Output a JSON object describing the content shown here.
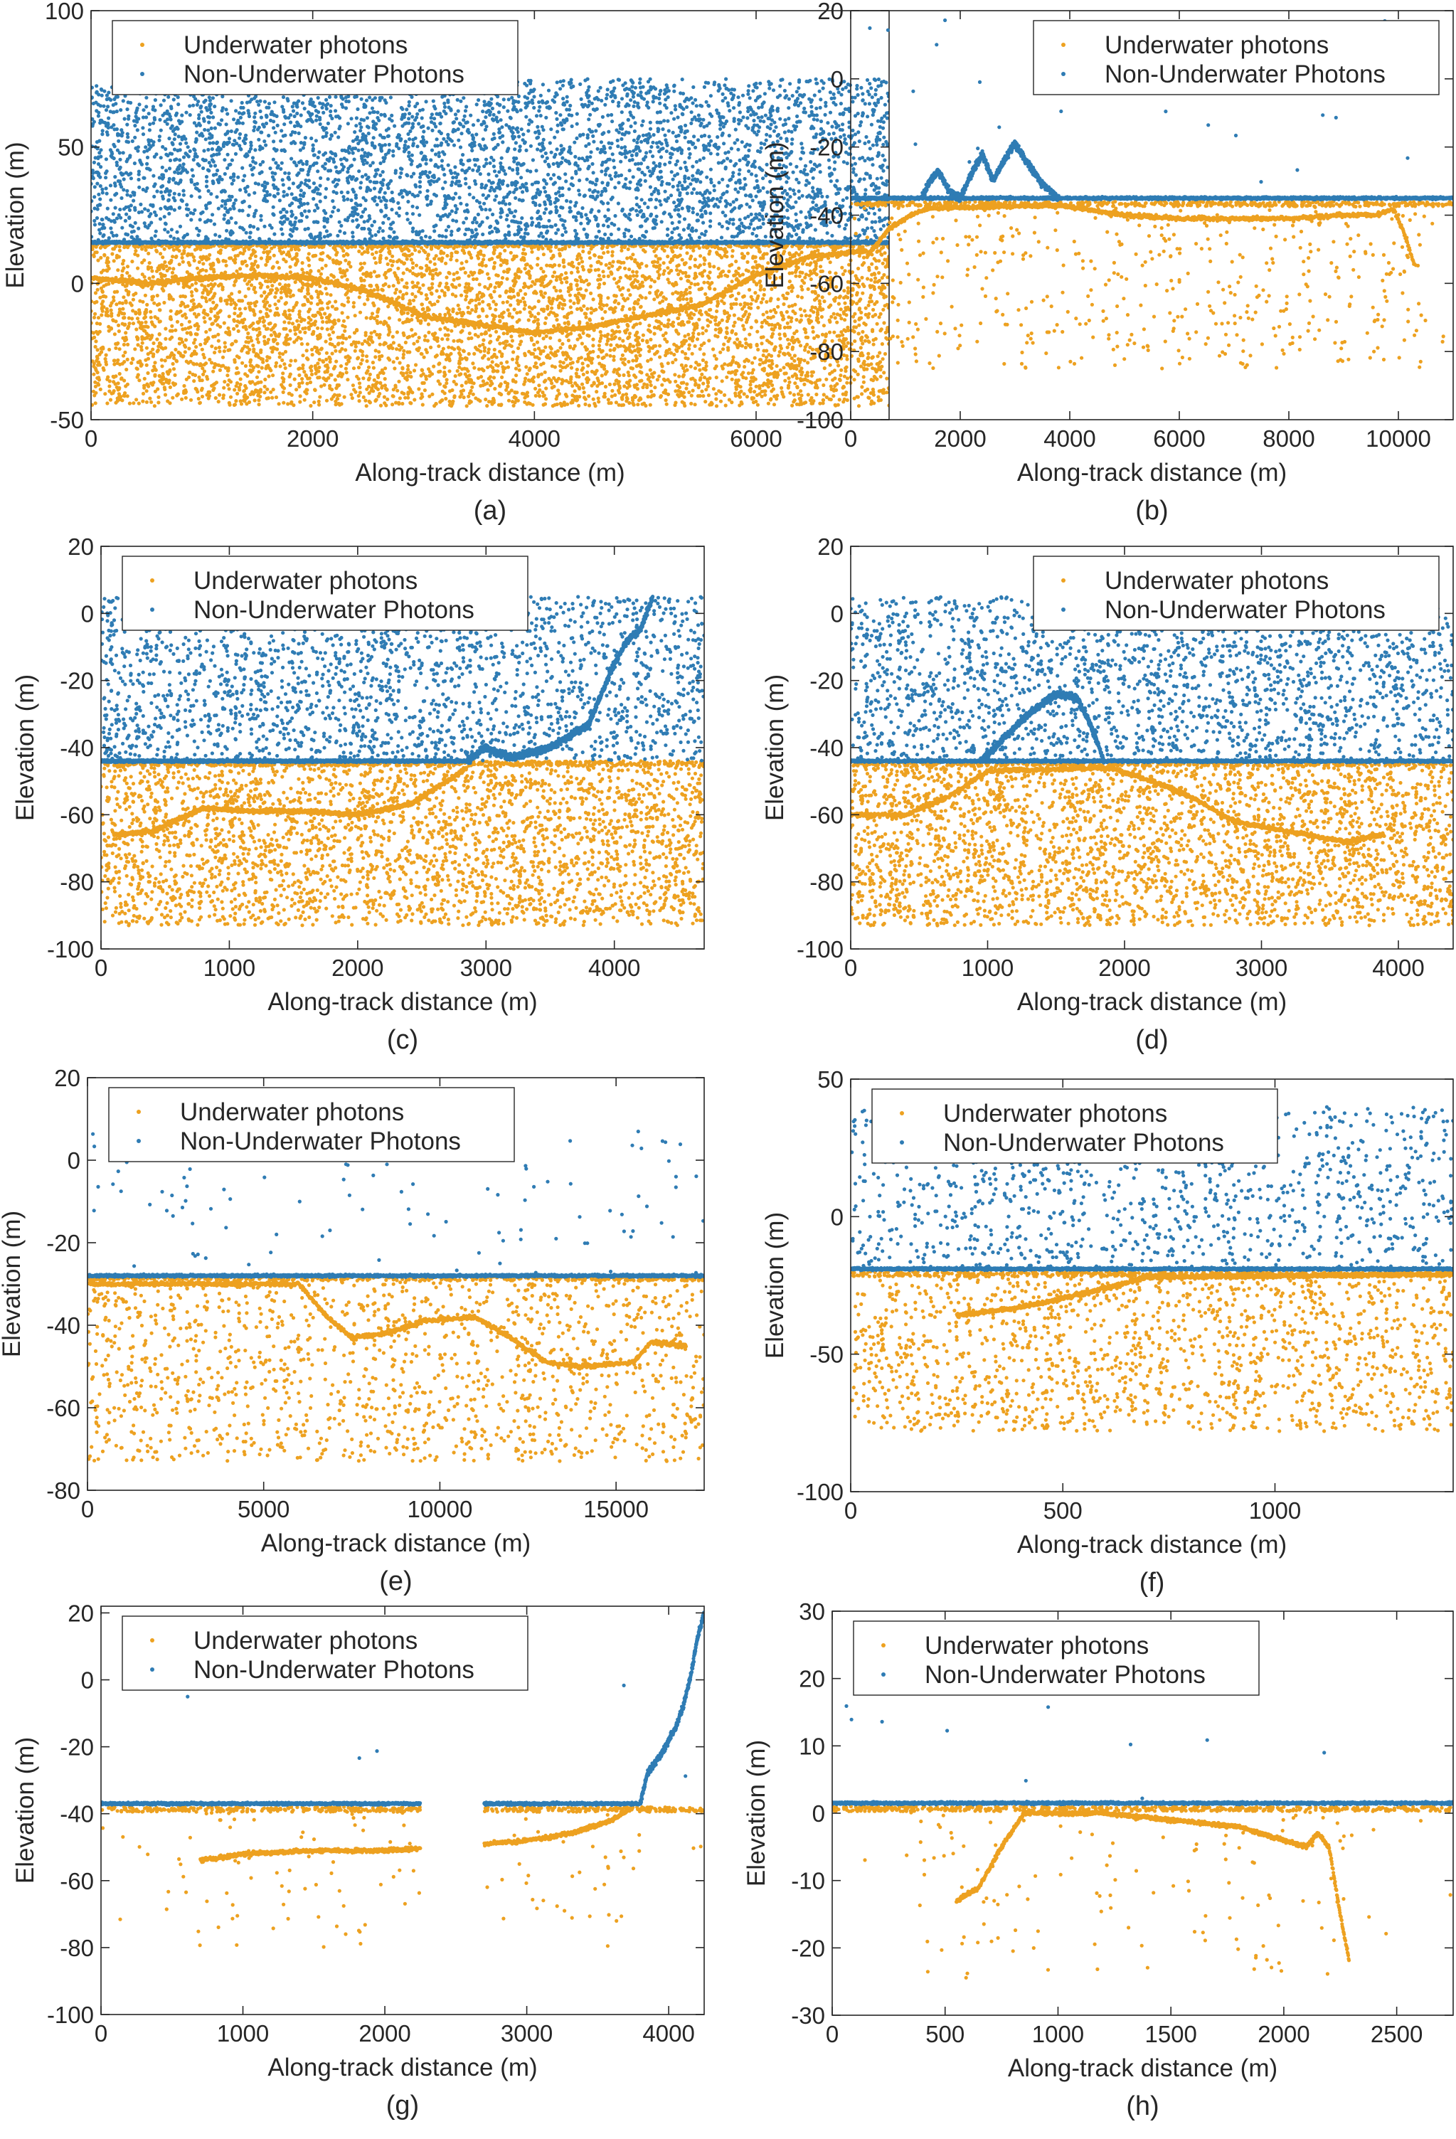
{
  "figure": {
    "xlabel": "Along-track distance (m)",
    "ylabel": "Elevation (m)",
    "legend": {
      "underwater": "Underwater photons",
      "nonunderwater": "Non-Underwater Photons"
    }
  },
  "colors": {
    "underwater": "#EDA120",
    "nonunderwater": "#2F7CB4",
    "axis": "#262626",
    "legend_border": "#262626"
  },
  "chart_data": [
    {
      "id": "a",
      "caption": "(a)",
      "type": "scatter",
      "xlabel": "Along-track distance (m)",
      "ylabel": "Elevation (m)",
      "xlim": [
        0,
        7200
      ],
      "ylim": [
        -50,
        100
      ],
      "xticks": [
        0,
        2000,
        4000,
        6000
      ],
      "yticks": [
        -50,
        0,
        50,
        100
      ],
      "legend_position": "top-left",
      "series": [
        {
          "name": "Underwater photons",
          "role": "underwater",
          "bottom": [
            [
              0,
              2
            ],
            [
              500,
              0
            ],
            [
              1000,
              2
            ],
            [
              1500,
              3
            ],
            [
              2000,
              2
            ],
            [
              2500,
              -3
            ],
            [
              3000,
              -12
            ],
            [
              3500,
              -15
            ],
            [
              4000,
              -18
            ],
            [
              4500,
              -16
            ],
            [
              5000,
              -12
            ],
            [
              5500,
              -8
            ],
            [
              6000,
              3
            ],
            [
              6500,
              10
            ],
            [
              7000,
              12
            ]
          ],
          "noise_range": [
            -45,
            15
          ],
          "noise_count": 5200,
          "line_y": 15
        },
        {
          "name": "Non-Underwater Photons",
          "role": "nonunderwater",
          "surface_y": 15,
          "noise_range": [
            15,
            75
          ],
          "noise_count": 4200
        }
      ]
    },
    {
      "id": "b",
      "caption": "(b)",
      "type": "scatter",
      "xlabel": "Along-track distance (m)",
      "ylabel": "Elevation (m)",
      "xlim": [
        0,
        11000
      ],
      "ylim": [
        -100,
        20
      ],
      "xticks": [
        0,
        2000,
        4000,
        6000,
        8000,
        10000
      ],
      "yticks": [
        -100,
        -80,
        -60,
        -40,
        -20,
        0,
        20
      ],
      "legend_position": "top-right",
      "series": [
        {
          "name": "Underwater photons",
          "role": "underwater",
          "bottom": [
            [
              300,
              -52
            ],
            [
              700,
              -44
            ],
            [
              1100,
              -40
            ],
            [
              1400,
              -38
            ],
            [
              3800,
              -37
            ],
            [
              5000,
              -40
            ],
            [
              6000,
              -41
            ],
            [
              7000,
              -41
            ],
            [
              8000,
              -41
            ],
            [
              9000,
              -40
            ],
            [
              9600,
              -40
            ],
            [
              9900,
              -38
            ],
            [
              10100,
              -45
            ],
            [
              10300,
              -55
            ]
          ],
          "noise_range": [
            -85,
            -36
          ],
          "noise_count": 550,
          "line_y": -36
        },
        {
          "name": "Non-Underwater Photons",
          "role": "nonunderwater",
          "surface_y": -35,
          "land": [
            [
              1300,
              -35
            ],
            [
              1450,
              -30
            ],
            [
              1600,
              -27
            ],
            [
              1800,
              -33
            ],
            [
              2000,
              -35
            ],
            [
              2200,
              -28
            ],
            [
              2400,
              -22
            ],
            [
              2600,
              -30
            ],
            [
              2800,
              -24
            ],
            [
              3000,
              -19
            ],
            [
              3200,
              -24
            ],
            [
              3500,
              -31
            ],
            [
              3800,
              -35
            ]
          ],
          "noise_range": [
            -35,
            18
          ],
          "noise_count": 30
        }
      ]
    },
    {
      "id": "c",
      "caption": "(c)",
      "type": "scatter",
      "xlabel": "Along-track distance (m)",
      "ylabel": "Elevation (m)",
      "xlim": [
        0,
        4700
      ],
      "ylim": [
        -100,
        20
      ],
      "xticks": [
        0,
        1000,
        2000,
        3000,
        4000
      ],
      "yticks": [
        -100,
        -80,
        -60,
        -40,
        -20,
        0,
        20
      ],
      "legend_position": "top-left",
      "series": [
        {
          "name": "Underwater photons",
          "role": "underwater",
          "bottom": [
            [
              100,
              -66
            ],
            [
              400,
              -65
            ],
            [
              800,
              -58
            ],
            [
              1200,
              -59
            ],
            [
              1600,
              -59
            ],
            [
              2000,
              -60
            ],
            [
              2400,
              -57
            ],
            [
              2700,
              -50
            ],
            [
              2850,
              -46
            ]
          ],
          "noise_range": [
            -93,
            -44
          ],
          "noise_count": 2900,
          "line_y": -44
        },
        {
          "name": "Non-Underwater Photons",
          "role": "nonunderwater",
          "surface_y": -44,
          "surface_xmax": 2850,
          "land": [
            [
              2850,
              -44
            ],
            [
              3000,
              -40
            ],
            [
              3200,
              -43
            ],
            [
              3500,
              -40
            ],
            [
              3800,
              -33
            ],
            [
              4000,
              -15
            ],
            [
              4100,
              -8
            ],
            [
              4200,
              -5
            ],
            [
              4300,
              5
            ]
          ],
          "noise_range": [
            -44,
            5
          ],
          "noise_count": 2100
        }
      ]
    },
    {
      "id": "d",
      "caption": "(d)",
      "type": "scatter",
      "xlabel": "Along-track distance (m)",
      "ylabel": "Elevation (m)",
      "xlim": [
        0,
        4400
      ],
      "ylim": [
        -100,
        20
      ],
      "xticks": [
        0,
        1000,
        2000,
        3000,
        4000
      ],
      "yticks": [
        -100,
        -80,
        -60,
        -40,
        -20,
        0,
        20
      ],
      "legend_position": "top-right",
      "series": [
        {
          "name": "Underwater photons",
          "role": "underwater",
          "bottom": [
            [
              0,
              -60
            ],
            [
              400,
              -60
            ],
            [
              700,
              -55
            ],
            [
              1000,
              -47
            ],
            [
              1900,
              -46
            ],
            [
              2200,
              -50
            ],
            [
              2500,
              -55
            ],
            [
              2800,
              -62
            ],
            [
              3200,
              -65
            ],
            [
              3600,
              -68
            ],
            [
              3900,
              -66
            ]
          ],
          "noise_range": [
            -93,
            -44
          ],
          "noise_count": 2900,
          "line_y": -44
        },
        {
          "name": "Non-Underwater Photons",
          "role": "nonunderwater",
          "surface_y": -44,
          "land": [
            [
              950,
              -44
            ],
            [
              1100,
              -38
            ],
            [
              1300,
              -30
            ],
            [
              1500,
              -24
            ],
            [
              1650,
              -25
            ],
            [
              1750,
              -33
            ],
            [
              1850,
              -44
            ]
          ],
          "noise_range": [
            -44,
            5
          ],
          "noise_count": 2100
        }
      ]
    },
    {
      "id": "e",
      "caption": "(e)",
      "type": "scatter",
      "xlabel": "Along-track distance (m)",
      "ylabel": "Elevation (m)",
      "xlim": [
        0,
        17500
      ],
      "ylim": [
        -80,
        20
      ],
      "xticks": [
        0,
        5000,
        10000,
        15000
      ],
      "yticks": [
        -80,
        -60,
        -40,
        -20,
        0,
        20
      ],
      "legend_position": "top-left",
      "series": [
        {
          "name": "Underwater photons",
          "role": "underwater",
          "bottom": [
            [
              0,
              -30
            ],
            [
              6000,
              -30
            ],
            [
              6800,
              -38
            ],
            [
              7500,
              -43
            ],
            [
              8500,
              -42
            ],
            [
              9500,
              -39
            ],
            [
              11000,
              -38
            ],
            [
              12000,
              -43
            ],
            [
              13000,
              -49
            ],
            [
              14000,
              -50
            ],
            [
              15500,
              -49
            ],
            [
              16000,
              -44
            ],
            [
              17000,
              -45
            ]
          ],
          "noise_range": [
            -73,
            -28
          ],
          "noise_count": 1400,
          "line_y": -28
        },
        {
          "name": "Non-Underwater Photons",
          "role": "nonunderwater",
          "surface_y": -28,
          "noise_range": [
            -28,
            12
          ],
          "noise_count": 120
        }
      ]
    },
    {
      "id": "f",
      "caption": "(f)",
      "type": "scatter",
      "xlabel": "Along-track distance (m)",
      "ylabel": "Elevation (m)",
      "xlim": [
        0,
        1420
      ],
      "ylim": [
        -100,
        50
      ],
      "xticks": [
        0,
        500,
        1000
      ],
      "yticks": [
        -100,
        -50,
        0,
        50
      ],
      "legend_position": "top-left",
      "series": [
        {
          "name": "Underwater photons",
          "role": "underwater",
          "bottom": [
            [
              250,
              -36
            ],
            [
              400,
              -33
            ],
            [
              550,
              -28
            ],
            [
              700,
              -22
            ],
            [
              1420,
              -21
            ]
          ],
          "noise_range": [
            -78,
            -20
          ],
          "noise_count": 1500,
          "line_y": -20
        },
        {
          "name": "Non-Underwater Photons",
          "role": "nonunderwater",
          "surface_y": -19,
          "noise_range": [
            -19,
            40
          ],
          "noise_count": 1100
        }
      ]
    },
    {
      "id": "g",
      "caption": "(g)",
      "type": "scatter",
      "xlabel": "Along-track distance (m)",
      "ylabel": "Elevation (m)",
      "xlim": [
        0,
        4250
      ],
      "ylim": [
        -100,
        22
      ],
      "xticks": [
        0,
        1000,
        2000,
        3000,
        4000
      ],
      "yticks": [
        -100,
        -80,
        -60,
        -40,
        -20,
        0,
        20
      ],
      "legend_position": "top-left",
      "series": [
        {
          "name": "Underwater photons",
          "role": "underwater",
          "bottom": [
            [
              700,
              -54
            ],
            [
              1000,
              -52
            ],
            [
              1500,
              -51
            ],
            [
              2000,
              -51
            ],
            [
              2700,
              -49
            ],
            [
              3000,
              -48
            ],
            [
              3300,
              -46
            ],
            [
              3600,
              -42
            ],
            [
              3750,
              -38
            ]
          ],
          "gap": [
            2250,
            2700
          ],
          "noise_range": [
            -80,
            -38
          ],
          "noise_count": 160,
          "line_y": -38
        },
        {
          "name": "Non-Underwater Photons",
          "role": "nonunderwater",
          "surface_y": -37,
          "surface_gap": [
            2250,
            2700
          ],
          "surface_xmax": 3800,
          "land": [
            [
              3800,
              -37
            ],
            [
              3850,
              -28
            ],
            [
              3950,
              -22
            ],
            [
              4050,
              -14
            ],
            [
              4100,
              -8
            ],
            [
              4150,
              0
            ],
            [
              4200,
              12
            ],
            [
              4250,
              20
            ]
          ],
          "noise_range": [
            -37,
            5
          ],
          "noise_count": 6
        }
      ]
    },
    {
      "id": "h",
      "caption": "(h)",
      "type": "scatter",
      "xlabel": "Along-track distance (m)",
      "ylabel": "Elevation (m)",
      "xlim": [
        0,
        2750
      ],
      "ylim": [
        -30,
        30
      ],
      "xticks": [
        0,
        500,
        1000,
        1500,
        2000,
        2500
      ],
      "yticks": [
        -30,
        -20,
        -10,
        0,
        10,
        20,
        30
      ],
      "legend_position": "top-left",
      "series": [
        {
          "name": "Underwater photons",
          "role": "underwater",
          "bottom": [
            [
              550,
              -13
            ],
            [
              650,
              -11
            ],
            [
              750,
              -5
            ],
            [
              850,
              0
            ],
            [
              1200,
              0
            ],
            [
              1500,
              -1
            ],
            [
              1800,
              -2
            ],
            [
              2000,
              -4
            ],
            [
              2100,
              -5
            ],
            [
              2150,
              -3
            ],
            [
              2200,
              -5
            ],
            [
              2250,
              -15
            ],
            [
              2290,
              -22
            ]
          ],
          "noise_range": [
            -25,
            1
          ],
          "noise_count": 180,
          "line_y": 1
        },
        {
          "name": "Non-Underwater Photons",
          "role": "nonunderwater",
          "surface_y": 1.5,
          "noise_range": [
            2,
            18
          ],
          "noise_count": 10
        }
      ]
    }
  ]
}
